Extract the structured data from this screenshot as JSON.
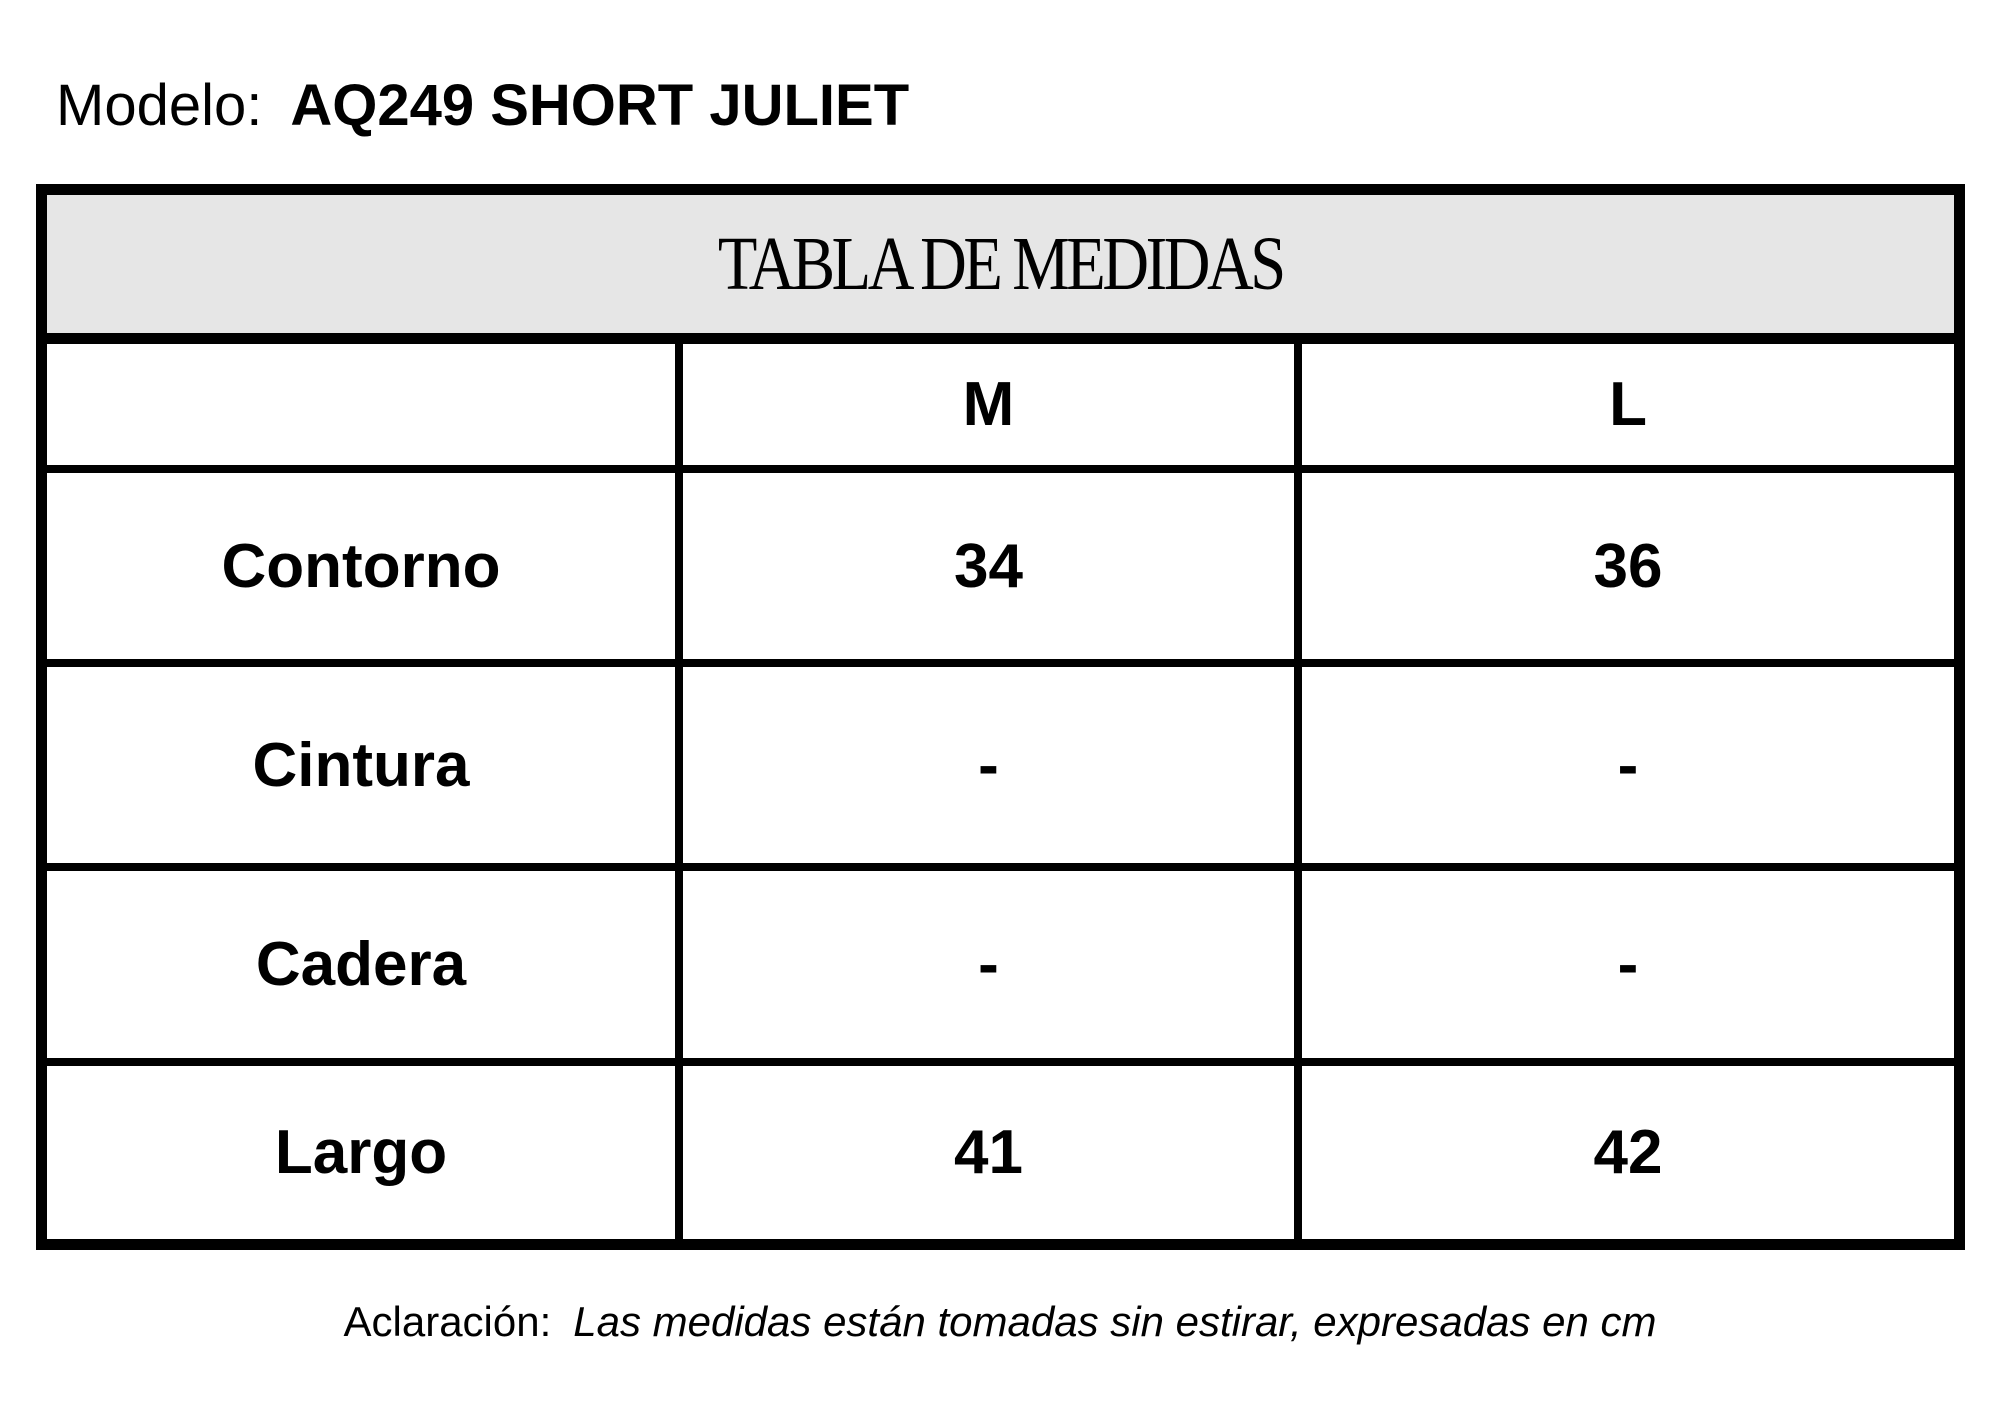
{
  "model": {
    "label": "Modelo:",
    "value": "AQ249 SHORT JULIET"
  },
  "table": {
    "title": "TABLA DE MEDIDAS",
    "columns": [
      "",
      "M",
      "L"
    ],
    "rows": [
      {
        "label": "Contorno",
        "values": [
          "34",
          "36"
        ]
      },
      {
        "label": "Cintura",
        "values": [
          "-",
          "-"
        ]
      },
      {
        "label": "Cadera",
        "values": [
          "-",
          "-"
        ]
      },
      {
        "label": "Largo",
        "values": [
          "41",
          "42"
        ]
      }
    ],
    "header_bg": "#e6e6e6"
  },
  "note": {
    "label": "Aclaración:",
    "text": "Las medidas están tomadas sin estirar, expresadas en cm"
  }
}
